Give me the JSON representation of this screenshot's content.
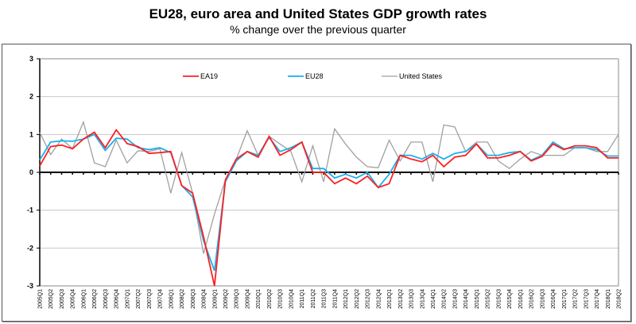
{
  "chart_data": {
    "type": "line",
    "title": "EU28, euro area and United States GDP growth rates",
    "subtitle": "% change over the previous quarter",
    "xlabel": "",
    "ylabel": "",
    "ylim": [
      -3,
      3
    ],
    "yticks": [
      "3",
      "2",
      "1",
      "0",
      "-1",
      "-2",
      "-3"
    ],
    "ytick_values": [
      3,
      2,
      1,
      0,
      -1,
      -2,
      -3
    ],
    "grid": true,
    "legend_position": "top",
    "categories": [
      "2005Q1",
      "2005Q2",
      "2005Q3",
      "2005Q4",
      "2006Q1",
      "2006Q2",
      "2006Q3",
      "2006Q4",
      "2007Q1",
      "2007Q2",
      "2007Q3",
      "2007Q4",
      "2008Q1",
      "2008Q2",
      "2008Q3",
      "2008Q4",
      "2009Q1",
      "2009Q2",
      "2009Q3",
      "2009Q4",
      "2010Q1",
      "2010Q2",
      "2010Q3",
      "2010Q4",
      "2011Q1",
      "2011Q2",
      "2011Q3",
      "2011Q4",
      "2012Q1",
      "2012Q2",
      "2012Q3",
      "2012Q4",
      "2013Q1",
      "2013Q2",
      "2013Q3",
      "2013Q4",
      "2014Q1",
      "2014Q2",
      "2014Q3",
      "2014Q4",
      "2015Q1",
      "2015Q2",
      "2015Q3",
      "2015Q4",
      "2016Q1",
      "2016Q2",
      "2016Q3",
      "2016Q4",
      "2017Q1",
      "2017Q2",
      "2017Q3",
      "2017Q4",
      "2018Q1",
      "2018Q2"
    ],
    "series": [
      {
        "name": "EA19",
        "color": "#ff2020",
        "values": [
          0.17,
          0.68,
          0.72,
          0.62,
          0.88,
          1.06,
          0.65,
          1.12,
          0.76,
          0.68,
          0.5,
          0.52,
          0.55,
          -0.35,
          -0.55,
          -1.7,
          -3.0,
          -0.2,
          0.35,
          0.55,
          0.4,
          0.95,
          0.45,
          0.6,
          0.8,
          0.0,
          0.0,
          -0.3,
          -0.15,
          -0.3,
          -0.1,
          -0.4,
          -0.3,
          0.45,
          0.35,
          0.28,
          0.45,
          0.15,
          0.4,
          0.45,
          0.75,
          0.38,
          0.38,
          0.45,
          0.55,
          0.3,
          0.42,
          0.75,
          0.6,
          0.7,
          0.7,
          0.65,
          0.38,
          0.38
        ]
      },
      {
        "name": "EU28",
        "color": "#1ab0ec",
        "values": [
          0.33,
          0.8,
          0.83,
          0.82,
          0.88,
          1.0,
          0.58,
          0.9,
          0.88,
          0.65,
          0.6,
          0.65,
          0.52,
          -0.35,
          -0.65,
          -1.8,
          -2.6,
          -0.25,
          0.3,
          0.55,
          0.45,
          0.92,
          0.55,
          0.65,
          0.8,
          0.1,
          0.1,
          -0.15,
          -0.05,
          -0.15,
          0.0,
          -0.4,
          -0.05,
          0.45,
          0.45,
          0.35,
          0.5,
          0.35,
          0.5,
          0.55,
          0.75,
          0.45,
          0.45,
          0.52,
          0.55,
          0.32,
          0.45,
          0.8,
          0.62,
          0.65,
          0.65,
          0.6,
          0.43,
          0.43
        ]
      },
      {
        "name": "United States",
        "color": "#a0a0a0",
        "values": [
          1.05,
          0.47,
          0.88,
          0.63,
          1.33,
          0.25,
          0.15,
          0.85,
          0.25,
          0.57,
          0.55,
          0.62,
          -0.55,
          0.52,
          -0.55,
          -2.15,
          -1.1,
          -0.2,
          0.35,
          1.1,
          0.45,
          0.95,
          0.75,
          0.55,
          -0.25,
          0.7,
          -0.25,
          1.15,
          0.75,
          0.4,
          0.15,
          0.12,
          0.85,
          0.3,
          0.8,
          0.8,
          -0.25,
          1.25,
          1.2,
          0.55,
          0.8,
          0.8,
          0.3,
          0.1,
          0.35,
          0.55,
          0.45,
          0.45,
          0.45,
          0.65,
          0.65,
          0.55,
          0.55,
          1.0
        ]
      }
    ]
  }
}
